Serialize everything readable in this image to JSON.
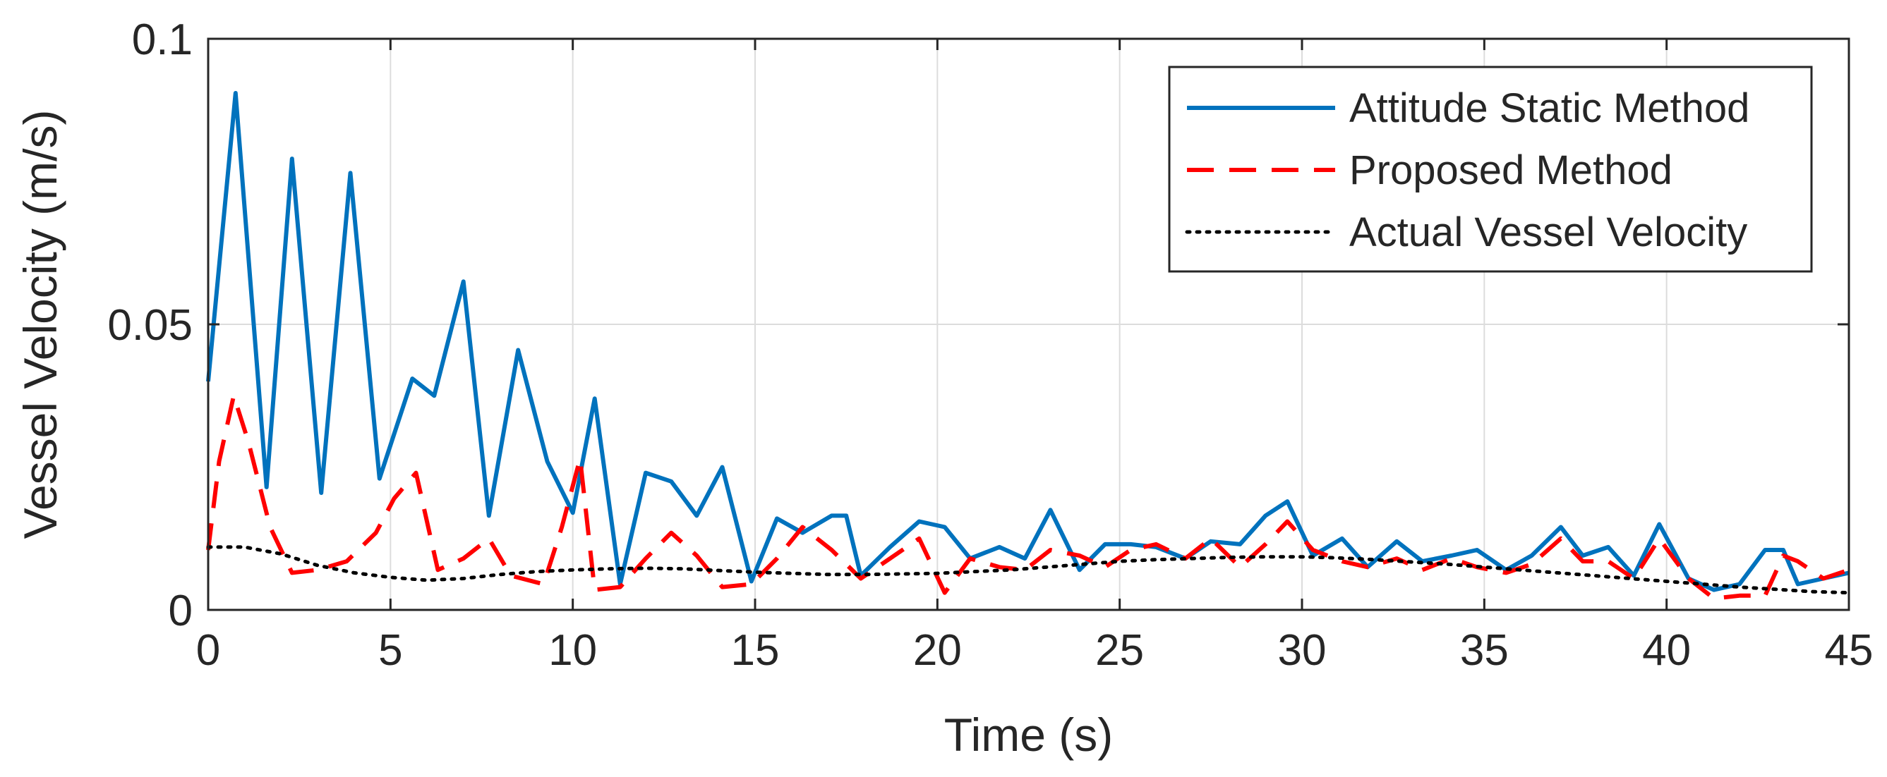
{
  "chart_data": {
    "type": "line",
    "title": "",
    "xlabel": "Time (s)",
    "ylabel": "Vessel Velocity (m/s)",
    "xlim": [
      0,
      45
    ],
    "ylim": [
      0,
      0.1
    ],
    "xticks": [
      0,
      5,
      10,
      15,
      20,
      25,
      30,
      35,
      40,
      45
    ],
    "xtick_labels": [
      "0",
      "5",
      "10",
      "15",
      "20",
      "25",
      "30",
      "35",
      "40",
      "45"
    ],
    "yticks": [
      0,
      0.05,
      0.1
    ],
    "ytick_labels": [
      "0",
      "0.05",
      "0.1"
    ],
    "grid": true,
    "legend_position": "top-right",
    "series": [
      {
        "name": "Attitude Static Method",
        "color": "#0072bd",
        "style": "solid",
        "x": [
          0,
          0.75,
          1.6,
          2.3,
          3.1,
          3.9,
          4.7,
          5.6,
          6.2,
          7.0,
          7.7,
          8.5,
          9.3,
          10.0,
          10.6,
          11.3,
          12.0,
          12.7,
          13.4,
          14.1,
          14.9,
          15.6,
          16.3,
          17.1,
          17.5,
          17.9,
          18.7,
          19.5,
          20.2,
          20.9,
          21.7,
          22.4,
          23.1,
          23.9,
          24.6,
          25.3,
          26.0,
          26.8,
          27.5,
          28.3,
          29.0,
          29.6,
          30.3,
          31.1,
          31.8,
          32.6,
          33.3,
          34.1,
          34.8,
          35.6,
          36.3,
          37.1,
          37.7,
          38.4,
          39.1,
          39.8,
          40.6,
          41.3,
          42.0,
          42.7,
          43.2,
          43.6,
          44.3,
          45.0
        ],
        "values": [
          0.04,
          0.0905,
          0.0215,
          0.079,
          0.0205,
          0.0765,
          0.023,
          0.0405,
          0.0375,
          0.0575,
          0.0165,
          0.0455,
          0.026,
          0.017,
          0.037,
          0.0045,
          0.024,
          0.0225,
          0.0165,
          0.025,
          0.005,
          0.016,
          0.0135,
          0.0165,
          0.0165,
          0.006,
          0.011,
          0.0155,
          0.0145,
          0.009,
          0.011,
          0.009,
          0.0175,
          0.007,
          0.0115,
          0.0115,
          0.011,
          0.009,
          0.012,
          0.0115,
          0.0165,
          0.019,
          0.0095,
          0.0125,
          0.0075,
          0.012,
          0.0085,
          0.0095,
          0.0105,
          0.007,
          0.0095,
          0.0145,
          0.0095,
          0.011,
          0.006,
          0.015,
          0.0055,
          0.0035,
          0.0045,
          0.0105,
          0.0105,
          0.0045,
          0.0055,
          0.0065
        ]
      },
      {
        "name": "Proposed Method",
        "color": "#ff0000",
        "style": "dashed",
        "x": [
          0,
          0.3,
          0.7,
          1.1,
          1.7,
          2.3,
          3.0,
          3.8,
          4.6,
          5.1,
          5.7,
          6.3,
          7.0,
          7.7,
          8.3,
          9.2,
          9.7,
          10.2,
          10.6,
          11.3,
          12.0,
          12.7,
          13.4,
          14.1,
          14.9,
          15.6,
          16.3,
          17.1,
          17.9,
          18.7,
          19.5,
          20.2,
          20.9,
          21.7,
          22.4,
          23.1,
          23.9,
          24.6,
          25.3,
          26.0,
          26.8,
          27.5,
          28.3,
          29.0,
          29.6,
          30.3,
          31.1,
          31.8,
          32.6,
          33.3,
          34.1,
          34.8,
          35.6,
          36.3,
          37.1,
          37.7,
          38.4,
          39.1,
          39.8,
          40.6,
          41.3,
          42.0,
          42.7,
          43.2,
          43.6,
          44.3,
          45.0
        ],
        "values": [
          0.0105,
          0.026,
          0.0375,
          0.0295,
          0.0145,
          0.0065,
          0.007,
          0.0085,
          0.0135,
          0.0195,
          0.024,
          0.007,
          0.009,
          0.0125,
          0.006,
          0.0045,
          0.0145,
          0.0265,
          0.0035,
          0.004,
          0.009,
          0.0135,
          0.0095,
          0.004,
          0.0045,
          0.009,
          0.0145,
          0.0105,
          0.0055,
          0.009,
          0.0125,
          0.003,
          0.009,
          0.0075,
          0.007,
          0.0105,
          0.0095,
          0.0075,
          0.0105,
          0.0115,
          0.009,
          0.0125,
          0.0075,
          0.0115,
          0.0155,
          0.0105,
          0.0085,
          0.0075,
          0.009,
          0.007,
          0.009,
          0.0075,
          0.0065,
          0.008,
          0.0125,
          0.0085,
          0.0085,
          0.0055,
          0.0125,
          0.0055,
          0.002,
          0.0025,
          0.0025,
          0.0095,
          0.0085,
          0.0055,
          0.007
        ]
      },
      {
        "name": "Actual Vessel Velocity",
        "color": "#000000",
        "style": "dotted",
        "x": [
          0,
          1,
          2,
          3,
          4,
          5,
          6,
          7,
          8,
          9,
          10,
          11,
          12,
          13,
          14,
          15,
          16,
          17,
          18,
          19,
          20,
          21,
          22,
          23,
          24,
          25,
          26,
          27,
          28,
          29,
          30,
          31,
          32,
          33,
          34,
          35,
          36,
          37,
          38,
          39,
          40,
          41,
          42,
          43,
          44,
          45
        ],
        "values": [
          0.011,
          0.011,
          0.0098,
          0.0078,
          0.0065,
          0.0057,
          0.0052,
          0.0055,
          0.0062,
          0.0067,
          0.007,
          0.0072,
          0.0073,
          0.0072,
          0.0069,
          0.0066,
          0.0064,
          0.0062,
          0.0062,
          0.0063,
          0.0064,
          0.0067,
          0.007,
          0.0075,
          0.008,
          0.0085,
          0.0088,
          0.009,
          0.0092,
          0.0093,
          0.0093,
          0.0091,
          0.0088,
          0.0084,
          0.008,
          0.0075,
          0.007,
          0.0065,
          0.006,
          0.0055,
          0.005,
          0.0045,
          0.004,
          0.0036,
          0.0032,
          0.003
        ]
      }
    ]
  }
}
